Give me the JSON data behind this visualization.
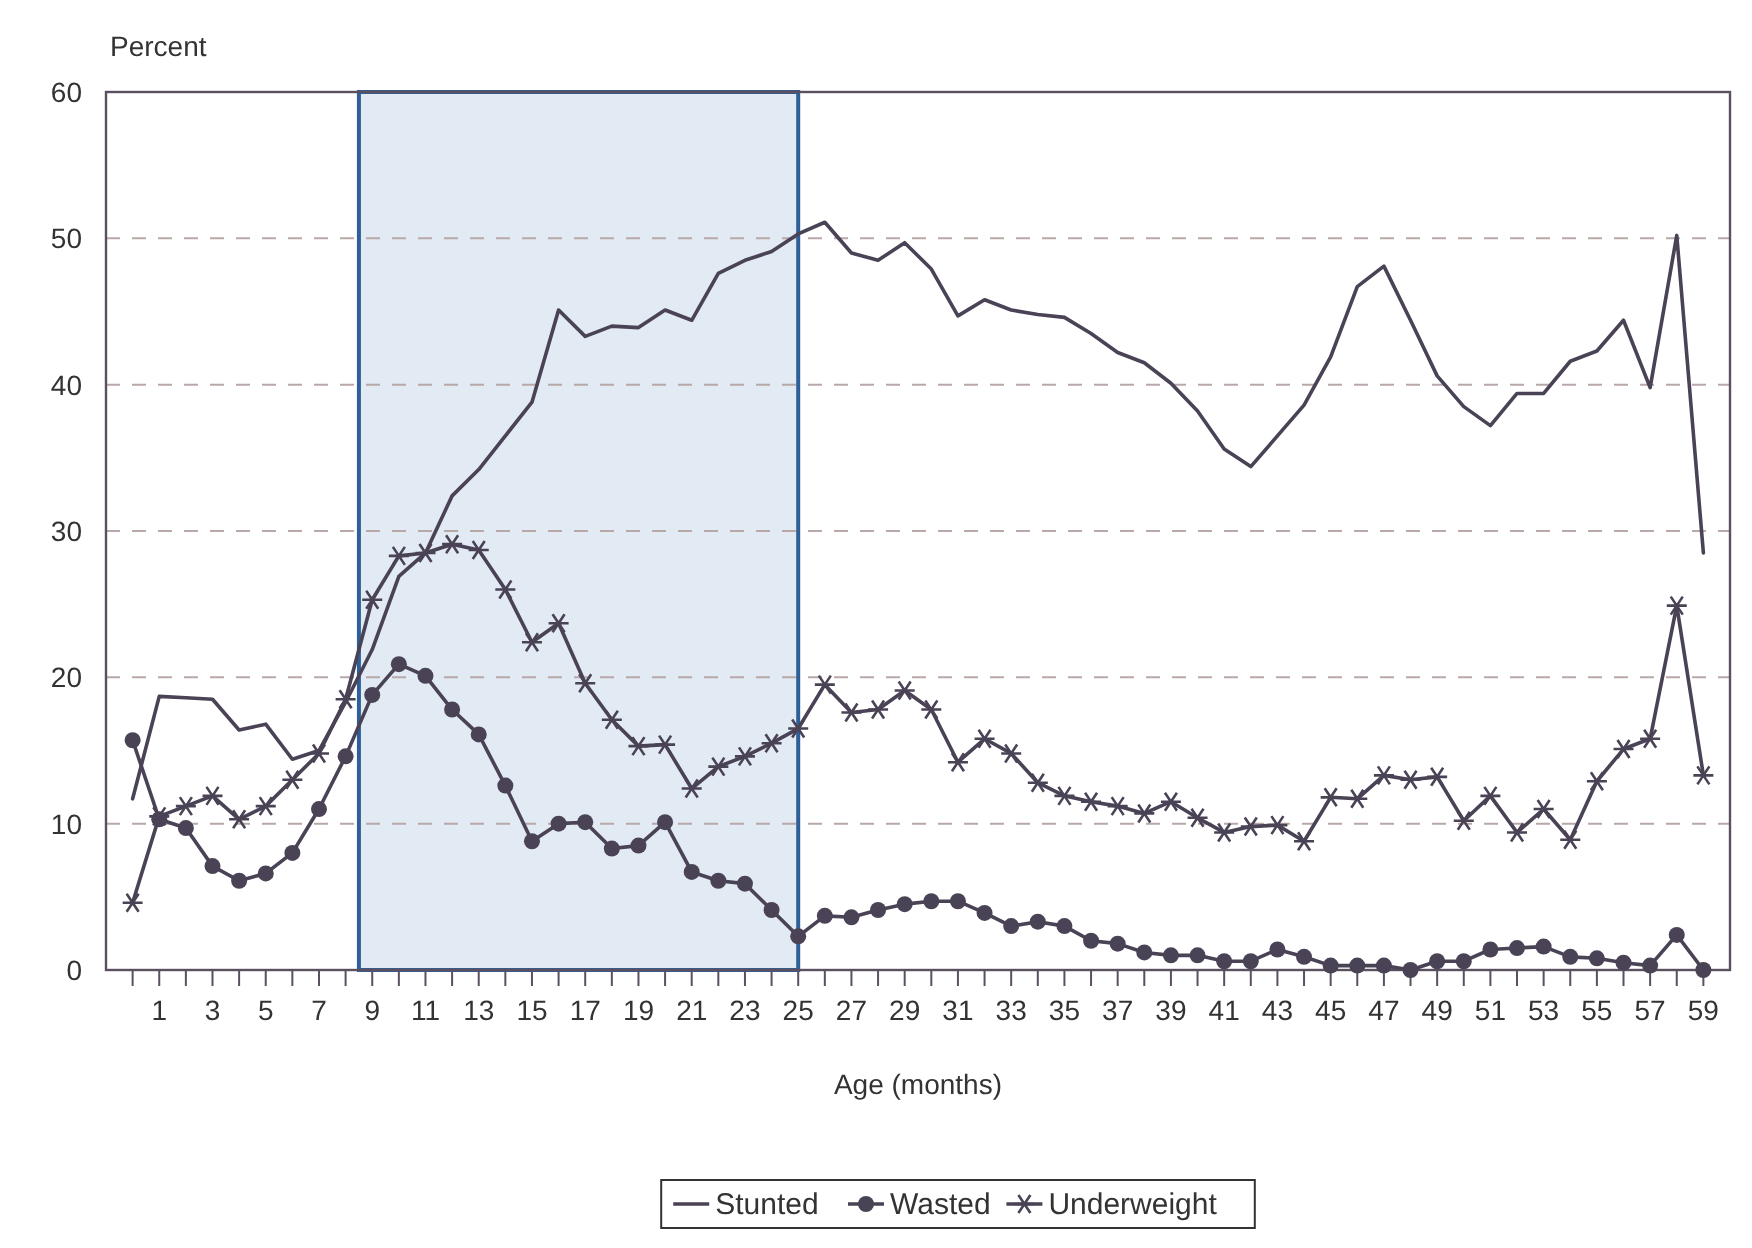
{
  "chart_data": {
    "type": "line",
    "xlabel": "Age (months)",
    "ylabel": "Percent",
    "x": [
      0,
      1,
      2,
      3,
      4,
      5,
      6,
      7,
      8,
      9,
      10,
      11,
      12,
      13,
      14,
      15,
      16,
      17,
      18,
      19,
      20,
      21,
      22,
      23,
      24,
      25,
      26,
      27,
      28,
      29,
      30,
      31,
      32,
      33,
      34,
      35,
      36,
      37,
      38,
      39,
      40,
      41,
      42,
      43,
      44,
      45,
      46,
      47,
      48,
      49,
      50,
      51,
      52,
      53,
      54,
      55,
      56,
      57,
      58,
      59
    ],
    "xlim": [
      -1,
      60
    ],
    "xticks": [
      {
        "value": 0,
        "label": null
      },
      1,
      {
        "value": 2,
        "label": null
      },
      3,
      {
        "value": 4,
        "label": null
      },
      5,
      {
        "value": 6,
        "label": null
      },
      7,
      {
        "value": 8,
        "label": null
      },
      9,
      {
        "value": 10,
        "label": null
      },
      11,
      {
        "value": 12,
        "label": null
      },
      13,
      {
        "value": 14,
        "label": null
      },
      15,
      {
        "value": 16,
        "label": null
      },
      17,
      {
        "value": 18,
        "label": null
      },
      19,
      {
        "value": 20,
        "label": null
      },
      21,
      {
        "value": 22,
        "label": null
      },
      23,
      {
        "value": 24,
        "label": null
      },
      25,
      {
        "value": 26,
        "label": null
      },
      27,
      {
        "value": 28,
        "label": null
      },
      29,
      {
        "value": 30,
        "label": null
      },
      31,
      {
        "value": 32,
        "label": null
      },
      33,
      {
        "value": 34,
        "label": null
      },
      35,
      {
        "value": 36,
        "label": null
      },
      37,
      {
        "value": 38,
        "label": null
      },
      39,
      {
        "value": 40,
        "label": null
      },
      41,
      {
        "value": 42,
        "label": null
      },
      43,
      {
        "value": 44,
        "label": null
      },
      45,
      {
        "value": 46,
        "label": null
      },
      47,
      {
        "value": 48,
        "label": null
      },
      49,
      {
        "value": 50,
        "label": null
      },
      51,
      {
        "value": 52,
        "label": null
      },
      53,
      {
        "value": 54,
        "label": null
      },
      55,
      {
        "value": 56,
        "label": null
      },
      57,
      {
        "value": 58,
        "label": null
      },
      59
    ],
    "ylim": [
      0,
      60
    ],
    "yticks": [
      0,
      10,
      20,
      30,
      40,
      50,
      60
    ],
    "grid": "y",
    "legend": "bottom",
    "bands": [
      {
        "axis": "x",
        "from": 8.5,
        "to": 25,
        "color": "#dfe8f3"
      }
    ],
    "series": [
      {
        "name": "Stunted",
        "color": "#4a4255",
        "marker": "none",
        "values": [
          11.7,
          18.7,
          18.6,
          18.5,
          16.4,
          16.8,
          14.4,
          15.0,
          18.3,
          21.9,
          26.9,
          28.5,
          32.4,
          34.2,
          36.5,
          38.8,
          45.1,
          43.3,
          44.0,
          43.9,
          45.1,
          44.4,
          47.6,
          48.5,
          49.1,
          50.3,
          51.1,
          49.0,
          48.5,
          49.7,
          47.9,
          44.7,
          45.8,
          45.1,
          44.8,
          44.6,
          43.5,
          42.2,
          41.5,
          40.1,
          38.2,
          35.6,
          34.4,
          36.5,
          38.6,
          41.9,
          46.7,
          48.1,
          44.4,
          40.6,
          38.5,
          37.2,
          39.4,
          39.4,
          41.6,
          42.3,
          44.4,
          39.8,
          50.2,
          28.5
        ]
      },
      {
        "name": "Wasted",
        "color": "#4a4255",
        "marker": "circle",
        "values": [
          15.7,
          10.3,
          9.7,
          7.1,
          6.1,
          6.6,
          8.0,
          11.0,
          14.6,
          18.8,
          20.9,
          20.1,
          17.8,
          16.1,
          12.6,
          8.8,
          10.0,
          10.1,
          8.3,
          8.5,
          10.1,
          6.7,
          6.1,
          5.9,
          4.1,
          2.3,
          3.7,
          3.6,
          4.1,
          4.5,
          4.7,
          4.7,
          3.9,
          3.0,
          3.3,
          3.0,
          2.0,
          1.8,
          1.2,
          1.0,
          1.0,
          0.6,
          0.6,
          1.4,
          0.9,
          0.3,
          0.3,
          0.3,
          0,
          0.6,
          0.6,
          1.4,
          1.5,
          1.6,
          0.9,
          0.8,
          0.5,
          0.3,
          2.4,
          0
        ]
      },
      {
        "name": "Underweight",
        "color": "#4a4255",
        "marker": "cross",
        "values": [
          4.6,
          10.5,
          11.2,
          11.9,
          10.3,
          11.2,
          13.0,
          14.8,
          18.5,
          25.3,
          28.3,
          28.5,
          29.1,
          28.7,
          26.0,
          22.4,
          23.7,
          19.6,
          17.1,
          15.3,
          15.4,
          12.4,
          13.9,
          14.6,
          15.5,
          16.5,
          19.5,
          17.6,
          17.8,
          19.1,
          17.8,
          14.2,
          15.8,
          14.8,
          12.8,
          11.9,
          11.5,
          11.2,
          10.7,
          11.5,
          10.4,
          9.4,
          9.8,
          9.9,
          8.8,
          11.8,
          11.7,
          13.3,
          13.0,
          13.2,
          10.2,
          11.9,
          9.4,
          11.0,
          8.9,
          12.9,
          15.1,
          15.8,
          24.9,
          13.3
        ]
      }
    ]
  }
}
